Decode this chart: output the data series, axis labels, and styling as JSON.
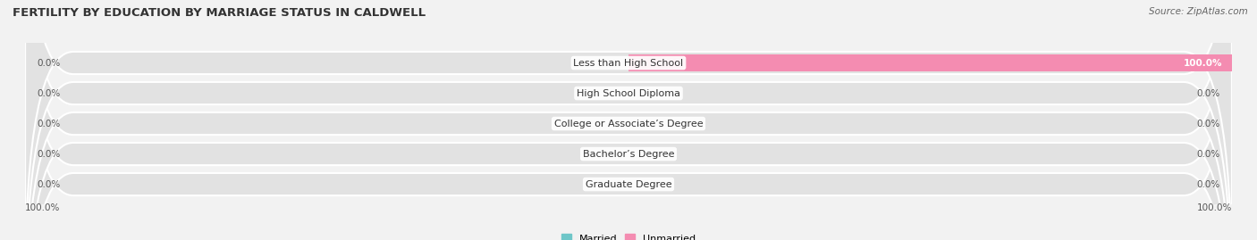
{
  "title": "FERTILITY BY EDUCATION BY MARRIAGE STATUS IN CALDWELL",
  "source": "Source: ZipAtlas.com",
  "categories": [
    "Less than High School",
    "High School Diploma",
    "College or Associate’s Degree",
    "Bachelor’s Degree",
    "Graduate Degree"
  ],
  "married_values": [
    0.0,
    0.0,
    0.0,
    0.0,
    0.0
  ],
  "unmarried_values": [
    100.0,
    0.0,
    0.0,
    0.0,
    0.0
  ],
  "married_color": "#6ec6c8",
  "unmarried_color": "#f48cb1",
  "bg_color": "#f2f2f2",
  "bar_bg_color": "#e2e2e2",
  "title_fontsize": 9.5,
  "label_fontsize": 8,
  "tick_fontsize": 7.5,
  "xlim": 100,
  "legend_married": "Married",
  "legend_unmarried": "Unmarried"
}
